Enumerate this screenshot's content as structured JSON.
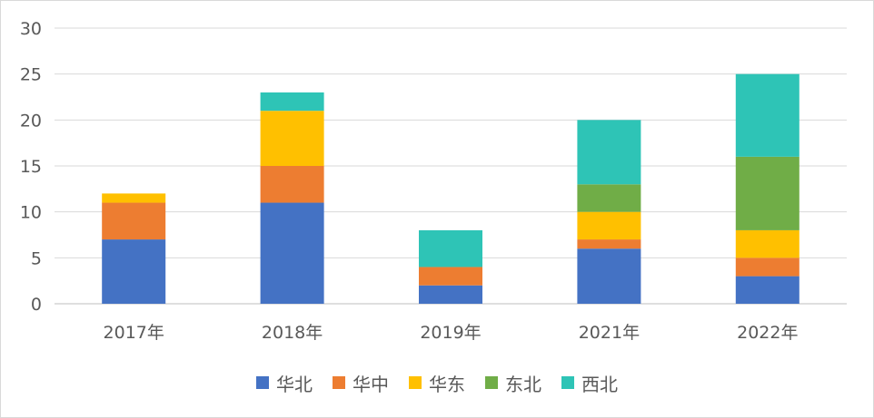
{
  "chart_data": {
    "type": "bar",
    "stacked": true,
    "categories": [
      "2017年",
      "2018年",
      "2019年",
      "2021年",
      "2022年"
    ],
    "series": [
      {
        "name": "华北",
        "color": "#4472C4",
        "values": [
          7,
          11,
          2,
          6,
          3
        ]
      },
      {
        "name": "华中",
        "color": "#ED7D31",
        "values": [
          4,
          4,
          2,
          1,
          2
        ]
      },
      {
        "name": "华东",
        "color": "#FFC000",
        "values": [
          1,
          6,
          0,
          3,
          3
        ]
      },
      {
        "name": "东北",
        "color": "#70AD47",
        "values": [
          0,
          0,
          0,
          3,
          8
        ]
      },
      {
        "name": "西北",
        "color": "#2EC4B6",
        "values": [
          0,
          2,
          4,
          7,
          9
        ]
      }
    ],
    "ylim": [
      0,
      30
    ],
    "yticks": [
      0,
      5,
      10,
      15,
      20,
      25,
      30
    ],
    "grid": true,
    "legend_position": "bottom",
    "title": "",
    "xlabel": "",
    "ylabel": ""
  }
}
